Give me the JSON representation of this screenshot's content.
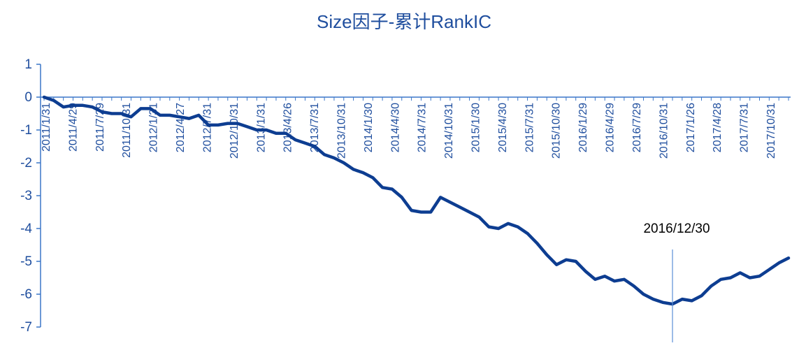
{
  "chart_data": {
    "type": "line",
    "title": "Size因子-累计RankIC",
    "xlabel": "",
    "ylabel": "",
    "ylim": [
      -7,
      1
    ],
    "yticks": [
      1,
      0,
      -1,
      -2,
      -3,
      -4,
      -5,
      -6,
      -7
    ],
    "xtick_labels": [
      "2011/1/31",
      "2011/4/29",
      "2011/7/29",
      "2011/10/31",
      "2012/1/31",
      "2012/4/27",
      "2012/7/31",
      "2012/10/31",
      "2013/1/31",
      "2013/4/26",
      "2013/7/31",
      "2013/10/31",
      "2014/1/30",
      "2014/4/30",
      "2014/7/31",
      "2014/10/31",
      "2015/1/30",
      "2015/4/30",
      "2015/7/31",
      "2015/10/30",
      "2016/1/29",
      "2016/4/29",
      "2016/7/29",
      "2016/10/31",
      "2017/1/26",
      "2017/4/28",
      "2017/7/31",
      "2017/10/31"
    ],
    "grid": false,
    "color": "#0d3d91",
    "series": [
      {
        "values": [
          0.0,
          -0.1,
          -0.3,
          -0.25,
          -0.25,
          -0.3,
          -0.45,
          -0.5,
          -0.5,
          -0.6,
          -0.35,
          -0.35,
          -0.55,
          -0.55,
          -0.6,
          -0.65,
          -0.55,
          -0.85,
          -0.85,
          -0.8,
          -0.8,
          -0.9,
          -1.0,
          -1.0,
          -1.1,
          -1.1,
          -1.3,
          -1.4,
          -1.5,
          -1.75,
          -1.85,
          -2.0,
          -2.2,
          -2.3,
          -2.45,
          -2.75,
          -2.8,
          -3.05,
          -3.45,
          -3.5,
          -3.5,
          -3.05,
          -3.2,
          -3.35,
          -3.5,
          -3.65,
          -3.95,
          -4.0,
          -3.85,
          -3.95,
          -4.15,
          -4.45,
          -4.8,
          -5.1,
          -4.95,
          -5.0,
          -5.3,
          -5.55,
          -5.45,
          -5.6,
          -5.55,
          -5.75,
          -6.0,
          -6.15,
          -6.25,
          -6.3,
          -6.15,
          -6.2,
          -6.05,
          -5.75,
          -5.55,
          -5.5,
          -5.35,
          -5.5,
          -5.45,
          -5.25,
          -5.05,
          -4.9
        ]
      }
    ],
    "annotation": {
      "label": "2016/12/30",
      "x_index": 65
    }
  }
}
